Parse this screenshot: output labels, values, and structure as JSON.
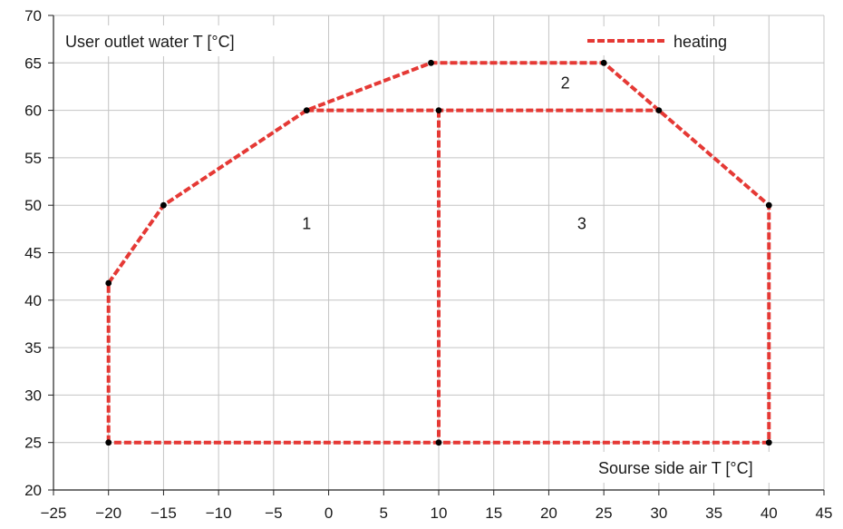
{
  "chart_data": {
    "type": "line",
    "title": "",
    "xlabel": "Sourse side air T [°C]",
    "ylabel": "User outlet water T [°C]",
    "xlim": [
      -25,
      45
    ],
    "ylim": [
      20,
      70
    ],
    "xticks": [
      -25,
      -20,
      -15,
      -10,
      -5,
      0,
      5,
      10,
      15,
      20,
      25,
      30,
      35,
      40,
      45
    ],
    "yticks": [
      20,
      25,
      30,
      35,
      40,
      45,
      50,
      55,
      60,
      65,
      70
    ],
    "grid": true,
    "legend": {
      "position": "top-right",
      "entries": [
        "heating"
      ]
    },
    "series": [
      {
        "name": "heating",
        "color": "#e53935",
        "style": "dashed",
        "points": [
          [
            -20,
            25
          ],
          [
            -20,
            41.8
          ],
          [
            -15,
            50
          ],
          [
            -2,
            60
          ],
          [
            9.3,
            65
          ],
          [
            25,
            65
          ],
          [
            30,
            60
          ],
          [
            40,
            50
          ],
          [
            40,
            25
          ],
          [
            10,
            25
          ],
          [
            -20,
            25
          ]
        ]
      },
      {
        "name": "",
        "color": "#e53935",
        "style": "dashed",
        "points": [
          [
            -2,
            60
          ],
          [
            30,
            60
          ]
        ]
      },
      {
        "name": "",
        "color": "#e53935",
        "style": "dashed",
        "points": [
          [
            10,
            60
          ],
          [
            10,
            25
          ]
        ]
      }
    ],
    "markers": [
      [
        -20,
        41.8
      ],
      [
        -15,
        50
      ],
      [
        -2,
        60
      ],
      [
        9.3,
        65
      ],
      [
        25,
        65
      ],
      [
        30,
        60
      ],
      [
        40,
        50
      ],
      [
        40,
        25
      ],
      [
        10,
        25
      ],
      [
        -20,
        25
      ],
      [
        10,
        60
      ]
    ],
    "annotations": [
      {
        "text": "1",
        "x": -2,
        "y": 47.5
      },
      {
        "text": "2",
        "x": 21.5,
        "y": 62.3
      },
      {
        "text": "3",
        "x": 23,
        "y": 47.5
      }
    ]
  }
}
